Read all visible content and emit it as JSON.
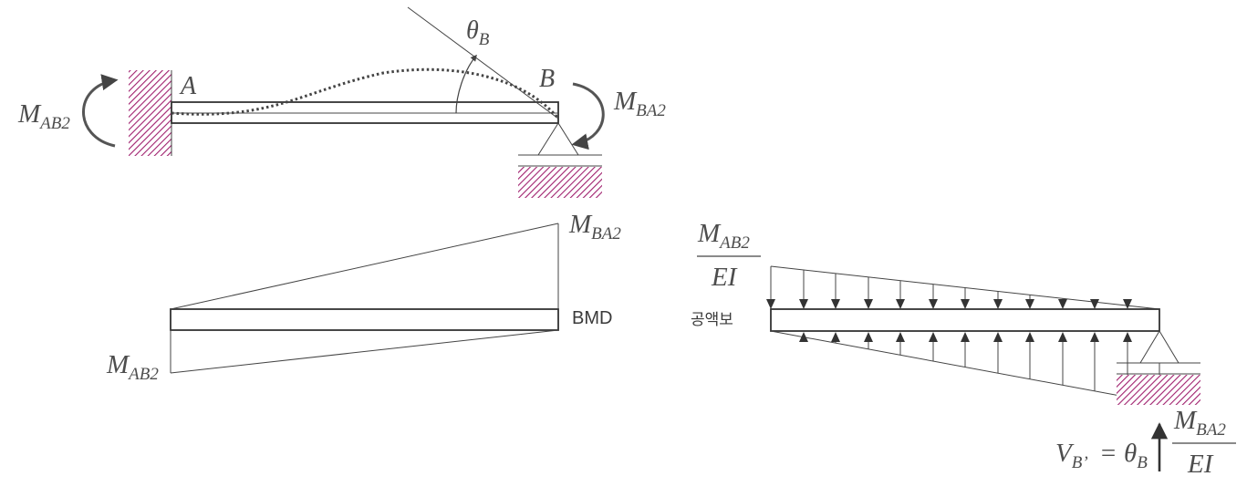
{
  "labels": {
    "theta_b": {
      "base": "θ",
      "sub": "B"
    },
    "point_a": "A",
    "point_b": "B",
    "m_ab2": {
      "base": "M",
      "sub": "AB2"
    },
    "m_ba2": {
      "base": "M",
      "sub": "BA2"
    },
    "bmd": "BMD",
    "conjugate_beam": "공액보",
    "ei": "EI",
    "vb_prime": {
      "base": "V",
      "sub": "B’"
    },
    "equals": "=",
    "theta_b_eq": {
      "base": "θ",
      "sub": "B"
    }
  },
  "colors": {
    "hatch": "#a0206e",
    "line": "#333333",
    "text": "#4d4d4d"
  },
  "icons": {
    "fixed_support": "hatched-wall",
    "pin_support": "triangle-support",
    "moment": "curved-arrow"
  }
}
